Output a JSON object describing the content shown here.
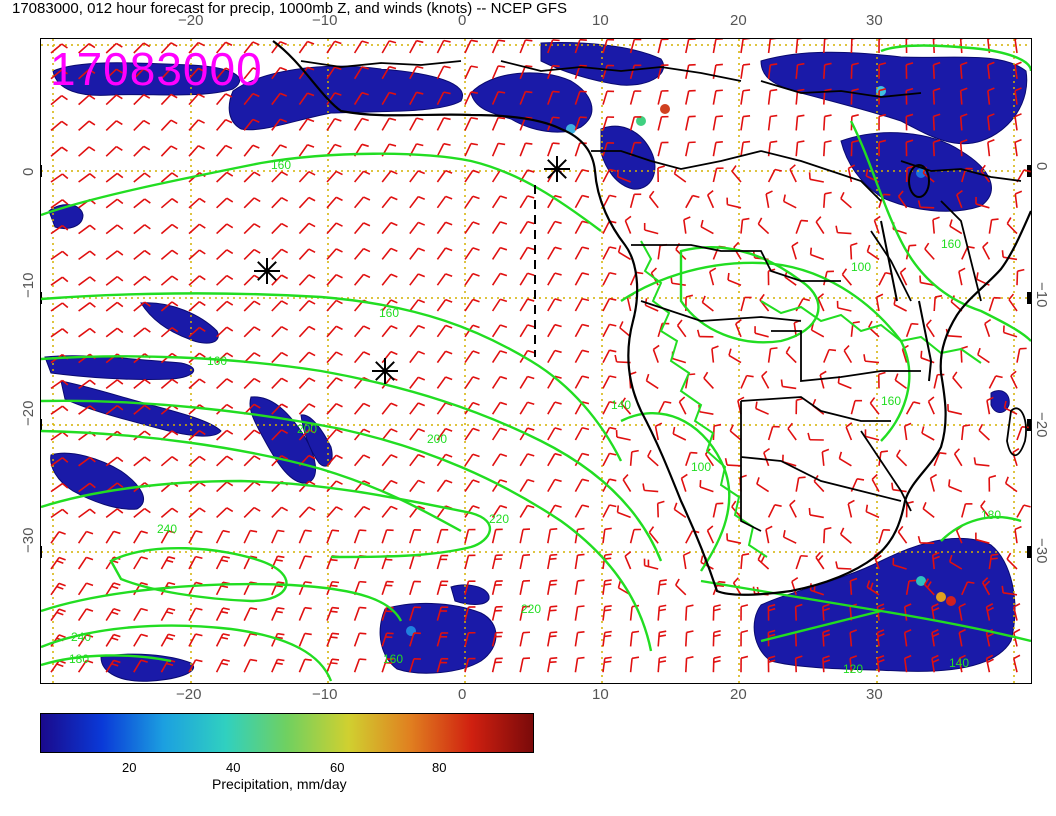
{
  "title": "17083000, 012 hour forecast for precip, 1000mb Z, and winds (knots) -- NCEP GFS",
  "stamp": "17083000",
  "axes": {
    "top_ticks": [
      "−20",
      "−10",
      "0",
      "10",
      "20",
      "30"
    ],
    "bottom_ticks": [
      "−20",
      "−10",
      "0",
      "10",
      "20",
      "30"
    ],
    "left_ticks": [
      "0",
      "−10",
      "−20",
      "−30"
    ],
    "right_ticks": [
      "0",
      "−10",
      "−20",
      "−30"
    ]
  },
  "contour_labels": [
    "160",
    "100",
    "160",
    "160",
    "200",
    "200",
    "220",
    "240",
    "220",
    "240",
    "180",
    "160",
    "140",
    "100",
    "160",
    "160",
    "180",
    "140",
    "120"
  ],
  "colorbar": {
    "ticks": [
      "20",
      "40",
      "60",
      "80"
    ],
    "label": "Precipitation, mm/day",
    "colors": [
      "#1a0a8c",
      "#0a3ad8",
      "#1ca0e0",
      "#30d0c0",
      "#70d060",
      "#d0d030",
      "#e08020",
      "#d02010",
      "#7a0a0a"
    ]
  },
  "colors": {
    "contour": "#22dd22",
    "barb": "#e01010",
    "coast": "#000000",
    "grid": "#d4b000",
    "stamp": "#ff00ff"
  }
}
